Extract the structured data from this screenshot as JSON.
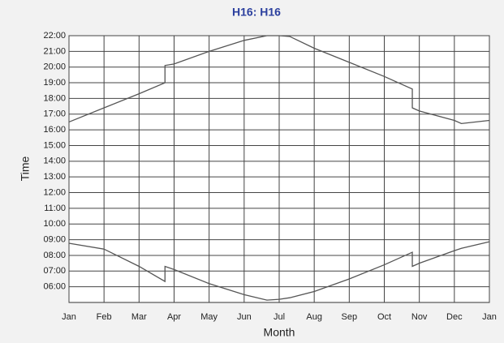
{
  "chart_data": {
    "type": "line",
    "title": "H16: H16",
    "xlabel": "Month",
    "ylabel": "Time",
    "x": [
      0,
      1,
      2,
      2.74,
      2.74,
      3,
      4,
      5,
      5.65,
      6,
      6.3,
      7,
      8,
      9,
      9.8,
      9.8,
      10,
      11,
      11.2,
      12
    ],
    "series": [
      {
        "color": "#555555",
        "values": [
          16.5,
          17.4,
          18.3,
          19.0,
          20.1,
          20.2,
          21.0,
          21.7,
          22.0,
          22.0,
          21.95,
          21.2,
          20.3,
          19.4,
          18.6,
          17.4,
          17.2,
          16.6,
          16.4,
          16.6
        ]
      },
      {
        "color": "#555555",
        "values": [
          8.77,
          8.4,
          7.3,
          6.34,
          7.3,
          7.1,
          6.2,
          5.5,
          5.15,
          5.2,
          5.3,
          5.7,
          6.5,
          7.4,
          8.2,
          7.3,
          7.5,
          8.3,
          8.45,
          8.87
        ]
      }
    ],
    "xlim": [
      0,
      12
    ],
    "xticks": [
      {
        "value": 0,
        "label": "Jan"
      },
      {
        "value": 1,
        "label": "Feb"
      },
      {
        "value": 2,
        "label": "Mar"
      },
      {
        "value": 3,
        "label": "Apr"
      },
      {
        "value": 4,
        "label": "May"
      },
      {
        "value": 5,
        "label": "Jun"
      },
      {
        "value": 6,
        "label": "Jul"
      },
      {
        "value": 7,
        "label": "Aug"
      },
      {
        "value": 8,
        "label": "Sep"
      },
      {
        "value": 9,
        "label": "Oct"
      },
      {
        "value": 10,
        "label": "Nov"
      },
      {
        "value": 11,
        "label": "Dec"
      },
      {
        "value": 12,
        "label": "Jan"
      }
    ],
    "ylim": [
      5,
      22
    ],
    "yticks": [
      {
        "value": 6,
        "label": "06:00"
      },
      {
        "value": 7,
        "label": "07:00"
      },
      {
        "value": 8,
        "label": "08:00"
      },
      {
        "value": 9,
        "label": "09:00"
      },
      {
        "value": 10,
        "label": "10:00"
      },
      {
        "value": 11,
        "label": "11:00"
      },
      {
        "value": 12,
        "label": "12:00"
      },
      {
        "value": 13,
        "label": "13:00"
      },
      {
        "value": 14,
        "label": "14:00"
      },
      {
        "value": 15,
        "label": "15:00"
      },
      {
        "value": 16,
        "label": "16:00"
      },
      {
        "value": 17,
        "label": "17:00"
      },
      {
        "value": 18,
        "label": "18:00"
      },
      {
        "value": 19,
        "label": "19:00"
      },
      {
        "value": 20,
        "label": "20:00"
      },
      {
        "value": 21,
        "label": "21:00"
      },
      {
        "value": 22,
        "label": "22:00"
      }
    ],
    "grid": true
  }
}
